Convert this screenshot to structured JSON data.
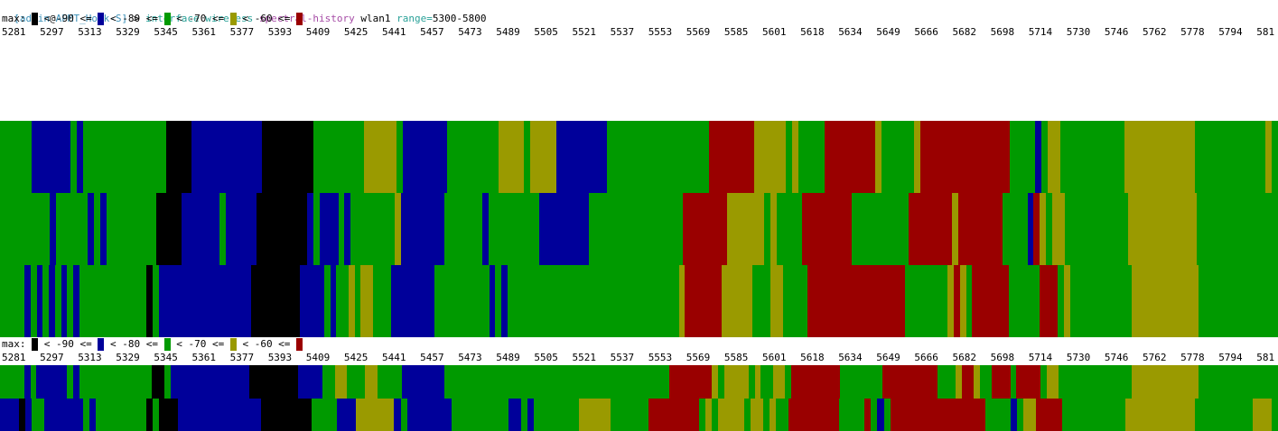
{
  "terminal": {
    "prompt": {
      "open_bracket": "[",
      "user": "admin",
      "at": "@",
      "host": "APMT_Hosk-S",
      "close_bracket": "]",
      "sep": " > ",
      "cmd1": "interface wireless ",
      "cmd2": "spectral-history",
      "iface": " wlan1 ",
      "arg_name": "range=",
      "arg_value": "5300-5800"
    },
    "legend": {
      "label": "max:",
      "items": [
        {
          "text": " < -90 <= ",
          "color": "#000000"
        },
        {
          "text": " < -80 <= ",
          "color": "#00009a"
        },
        {
          "text": " < -70 <= ",
          "color": "#009a00"
        },
        {
          "text": " < -60 <= ",
          "color": "#9a9a00"
        },
        {
          "text": "",
          "color": "#9a0000"
        }
      ]
    },
    "frequencies": [
      "5281",
      "5297",
      "5313",
      "5329",
      "5345",
      "5361",
      "5377",
      "5393",
      "5409",
      "5425",
      "5441",
      "5457",
      "5473",
      "5489",
      "5505",
      "5521",
      "5537",
      "5553",
      "5569",
      "5585",
      "5601",
      "5618",
      "5634",
      "5649",
      "5666",
      "5682",
      "5698",
      "5714",
      "5730",
      "5746",
      "5762",
      "5778",
      "5794",
      "581"
    ],
    "colors": {
      "k": "#000000",
      "b": "#00009a",
      "g": "#009a00",
      "y": "#9a9a00",
      "r": "#9a0000"
    },
    "history_rows": [
      "gggggbbbbbbgbgggggggggggggkkkkbbbbbbbbbbbkkkkkkkkggggggggyyyyygbbbbbbbggggggggyyyygyyyybbbbbbbbggggggggggggggggrrrrrrryyyyygyggggrrrrrrrrygggggyrrrrrrrrrrrrrrggggbgyyggggggggggyyyyyyyyyyygggggggggggyg",
      "ggggggggbgggggbgbggggggggkkkkbbbbbbgbbbbbkkkkkkkkbgbbbgbgggggggybbbbbbbggggggbggggggggbbbbbbbbgggggggggggggggrrrrrrryyyyyygyggggrrrrrrrrgggggggggrrrrrrryrrrrrrrggggbrygyyggggggggggyyyyyyyyyyyggggggggggggg",
      "ggggbgbgbgbgbgggggggggggkgbbbbbbbbbbbbbbbkkkkkkkkbbbbgbggygyygggbbbbbbbgggggggggbgbggggggggggggggggggggggggggggyrrrrrryyyyygggyyggggrrrrrrrrrrrrrrrrgggggggyrygrrrrrrgggggrrrgyggggggggggyyyyyyyyyyyggggggggggggg"
    ],
    "current_rows": [
      "ggggbgbbbbbgbggggggggggggkkgbbbbbbbbbbbbbkkkkkkkkbbbbggyygggyyggggbbbbbbbgggggggggggggggggggggggggggggggggggggrrrrrrrygyyyygyggyygrrrrrrrrgggggggrrrrrrrrrgggyrryggrrrgrrrrgyyggggggggggggyyyyyyyyyyyggggggggggggg",
      "bbbkbggbbbbbbgbggggggggkgkkkbbbbbbbbbbbbbkkkkkkkkggggbbbyyyyyybgbbbbbbbgggggggggbbgbgggggggyyyyyggggggrrrrrrrrgygyyyygyygyggrrrrrrrrggggrgbgrrrrrrrrrrrrrrrggggbgyyrrrrggggggggggyyyyyyyyyyygggggggggyyyg"
    ]
  }
}
